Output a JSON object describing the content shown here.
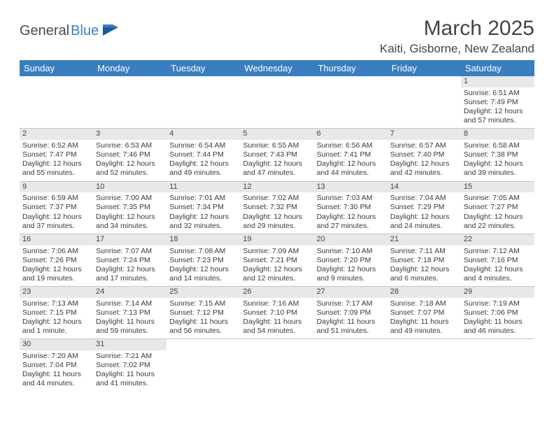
{
  "logo": {
    "part1": "General",
    "part2": "Blue"
  },
  "title": "March 2025",
  "location": "Kaiti, Gisborne, New Zealand",
  "colors": {
    "header_bg": "#3a7ebf",
    "header_fg": "#ffffff",
    "daynum_bg": "#e8e8e8",
    "border": "#b8c8d8",
    "text": "#3a3a3a"
  },
  "dow": [
    "Sunday",
    "Monday",
    "Tuesday",
    "Wednesday",
    "Thursday",
    "Friday",
    "Saturday"
  ],
  "weeks": [
    [
      null,
      null,
      null,
      null,
      null,
      null,
      {
        "n": "1",
        "sr": "Sunrise: 6:51 AM",
        "ss": "Sunset: 7:49 PM",
        "dl1": "Daylight: 12 hours",
        "dl2": "and 57 minutes."
      }
    ],
    [
      {
        "n": "2",
        "sr": "Sunrise: 6:52 AM",
        "ss": "Sunset: 7:47 PM",
        "dl1": "Daylight: 12 hours",
        "dl2": "and 55 minutes."
      },
      {
        "n": "3",
        "sr": "Sunrise: 6:53 AM",
        "ss": "Sunset: 7:46 PM",
        "dl1": "Daylight: 12 hours",
        "dl2": "and 52 minutes."
      },
      {
        "n": "4",
        "sr": "Sunrise: 6:54 AM",
        "ss": "Sunset: 7:44 PM",
        "dl1": "Daylight: 12 hours",
        "dl2": "and 49 minutes."
      },
      {
        "n": "5",
        "sr": "Sunrise: 6:55 AM",
        "ss": "Sunset: 7:43 PM",
        "dl1": "Daylight: 12 hours",
        "dl2": "and 47 minutes."
      },
      {
        "n": "6",
        "sr": "Sunrise: 6:56 AM",
        "ss": "Sunset: 7:41 PM",
        "dl1": "Daylight: 12 hours",
        "dl2": "and 44 minutes."
      },
      {
        "n": "7",
        "sr": "Sunrise: 6:57 AM",
        "ss": "Sunset: 7:40 PM",
        "dl1": "Daylight: 12 hours",
        "dl2": "and 42 minutes."
      },
      {
        "n": "8",
        "sr": "Sunrise: 6:58 AM",
        "ss": "Sunset: 7:38 PM",
        "dl1": "Daylight: 12 hours",
        "dl2": "and 39 minutes."
      }
    ],
    [
      {
        "n": "9",
        "sr": "Sunrise: 6:59 AM",
        "ss": "Sunset: 7:37 PM",
        "dl1": "Daylight: 12 hours",
        "dl2": "and 37 minutes."
      },
      {
        "n": "10",
        "sr": "Sunrise: 7:00 AM",
        "ss": "Sunset: 7:35 PM",
        "dl1": "Daylight: 12 hours",
        "dl2": "and 34 minutes."
      },
      {
        "n": "11",
        "sr": "Sunrise: 7:01 AM",
        "ss": "Sunset: 7:34 PM",
        "dl1": "Daylight: 12 hours",
        "dl2": "and 32 minutes."
      },
      {
        "n": "12",
        "sr": "Sunrise: 7:02 AM",
        "ss": "Sunset: 7:32 PM",
        "dl1": "Daylight: 12 hours",
        "dl2": "and 29 minutes."
      },
      {
        "n": "13",
        "sr": "Sunrise: 7:03 AM",
        "ss": "Sunset: 7:30 PM",
        "dl1": "Daylight: 12 hours",
        "dl2": "and 27 minutes."
      },
      {
        "n": "14",
        "sr": "Sunrise: 7:04 AM",
        "ss": "Sunset: 7:29 PM",
        "dl1": "Daylight: 12 hours",
        "dl2": "and 24 minutes."
      },
      {
        "n": "15",
        "sr": "Sunrise: 7:05 AM",
        "ss": "Sunset: 7:27 PM",
        "dl1": "Daylight: 12 hours",
        "dl2": "and 22 minutes."
      }
    ],
    [
      {
        "n": "16",
        "sr": "Sunrise: 7:06 AM",
        "ss": "Sunset: 7:26 PM",
        "dl1": "Daylight: 12 hours",
        "dl2": "and 19 minutes."
      },
      {
        "n": "17",
        "sr": "Sunrise: 7:07 AM",
        "ss": "Sunset: 7:24 PM",
        "dl1": "Daylight: 12 hours",
        "dl2": "and 17 minutes."
      },
      {
        "n": "18",
        "sr": "Sunrise: 7:08 AM",
        "ss": "Sunset: 7:23 PM",
        "dl1": "Daylight: 12 hours",
        "dl2": "and 14 minutes."
      },
      {
        "n": "19",
        "sr": "Sunrise: 7:09 AM",
        "ss": "Sunset: 7:21 PM",
        "dl1": "Daylight: 12 hours",
        "dl2": "and 12 minutes."
      },
      {
        "n": "20",
        "sr": "Sunrise: 7:10 AM",
        "ss": "Sunset: 7:20 PM",
        "dl1": "Daylight: 12 hours",
        "dl2": "and 9 minutes."
      },
      {
        "n": "21",
        "sr": "Sunrise: 7:11 AM",
        "ss": "Sunset: 7:18 PM",
        "dl1": "Daylight: 12 hours",
        "dl2": "and 6 minutes."
      },
      {
        "n": "22",
        "sr": "Sunrise: 7:12 AM",
        "ss": "Sunset: 7:16 PM",
        "dl1": "Daylight: 12 hours",
        "dl2": "and 4 minutes."
      }
    ],
    [
      {
        "n": "23",
        "sr": "Sunrise: 7:13 AM",
        "ss": "Sunset: 7:15 PM",
        "dl1": "Daylight: 12 hours",
        "dl2": "and 1 minute."
      },
      {
        "n": "24",
        "sr": "Sunrise: 7:14 AM",
        "ss": "Sunset: 7:13 PM",
        "dl1": "Daylight: 11 hours",
        "dl2": "and 59 minutes."
      },
      {
        "n": "25",
        "sr": "Sunrise: 7:15 AM",
        "ss": "Sunset: 7:12 PM",
        "dl1": "Daylight: 11 hours",
        "dl2": "and 56 minutes."
      },
      {
        "n": "26",
        "sr": "Sunrise: 7:16 AM",
        "ss": "Sunset: 7:10 PM",
        "dl1": "Daylight: 11 hours",
        "dl2": "and 54 minutes."
      },
      {
        "n": "27",
        "sr": "Sunrise: 7:17 AM",
        "ss": "Sunset: 7:09 PM",
        "dl1": "Daylight: 11 hours",
        "dl2": "and 51 minutes."
      },
      {
        "n": "28",
        "sr": "Sunrise: 7:18 AM",
        "ss": "Sunset: 7:07 PM",
        "dl1": "Daylight: 11 hours",
        "dl2": "and 49 minutes."
      },
      {
        "n": "29",
        "sr": "Sunrise: 7:19 AM",
        "ss": "Sunset: 7:06 PM",
        "dl1": "Daylight: 11 hours",
        "dl2": "and 46 minutes."
      }
    ],
    [
      {
        "n": "30",
        "sr": "Sunrise: 7:20 AM",
        "ss": "Sunset: 7:04 PM",
        "dl1": "Daylight: 11 hours",
        "dl2": "and 44 minutes."
      },
      {
        "n": "31",
        "sr": "Sunrise: 7:21 AM",
        "ss": "Sunset: 7:02 PM",
        "dl1": "Daylight: 11 hours",
        "dl2": "and 41 minutes."
      },
      null,
      null,
      null,
      null,
      null
    ]
  ]
}
